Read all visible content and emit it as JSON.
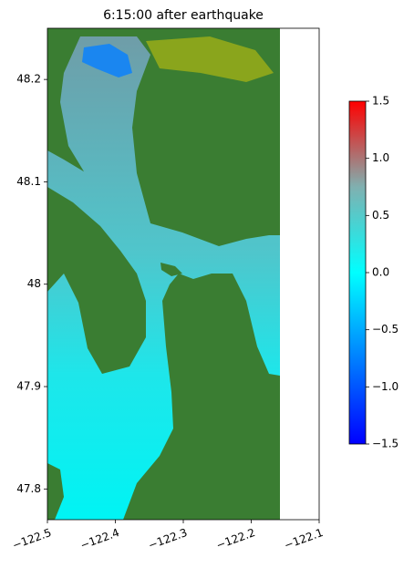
{
  "chart_data": {
    "type": "map",
    "title": "6:15:00 after earthquake",
    "xlim": [
      -122.5,
      -122.1
    ],
    "ylim": [
      47.77,
      48.25
    ],
    "xticks": [
      {
        "value": -122.5,
        "label": "−122.5"
      },
      {
        "value": -122.4,
        "label": "−122.4"
      },
      {
        "value": -122.3,
        "label": "−122.3"
      },
      {
        "value": -122.2,
        "label": "−122.2"
      },
      {
        "value": -122.1,
        "label": "−122.1"
      }
    ],
    "yticks": [
      47.8,
      47.9,
      48.0,
      48.1,
      48.2
    ],
    "colorbar": {
      "lim": [
        -1.5,
        1.5
      ],
      "ticks": [
        {
          "value": -1.5,
          "label": "−1.5"
        },
        {
          "value": -1.0,
          "label": "−1.0"
        },
        {
          "value": -0.5,
          "label": "−0.5"
        },
        {
          "value": 0,
          "label": "0.0"
        },
        0.5,
        {
          "value": 1.0,
          "label": "1.0"
        },
        1.5
      ],
      "colors": [
        "#0000ff",
        "#0080ff",
        "#00ffff",
        "#80b0b0",
        "#ff0000"
      ]
    }
  }
}
